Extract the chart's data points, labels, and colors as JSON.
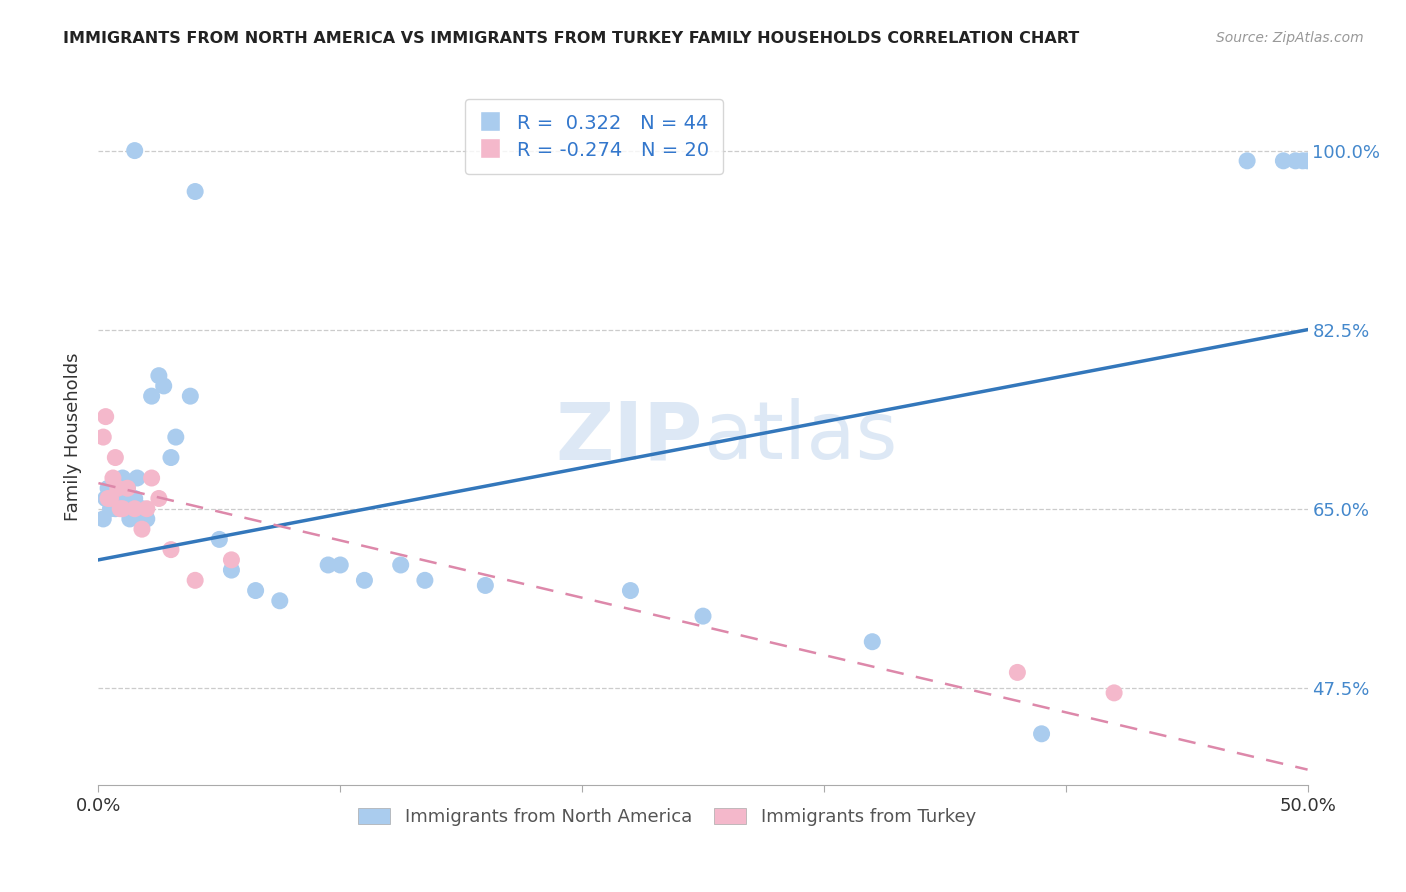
{
  "title": "IMMIGRANTS FROM NORTH AMERICA VS IMMIGRANTS FROM TURKEY FAMILY HOUSEHOLDS CORRELATION CHART",
  "source": "Source: ZipAtlas.com",
  "ylabel": "Family Households",
  "ytick_labels": [
    "100.0%",
    "82.5%",
    "65.0%",
    "47.5%"
  ],
  "ytick_values": [
    1.0,
    0.825,
    0.65,
    0.475
  ],
  "xmin": 0.0,
  "xmax": 0.5,
  "ymin": 0.38,
  "ymax": 1.06,
  "legend_blue_r": "R =  0.322",
  "legend_blue_n": "N = 44",
  "legend_pink_r": "R = -0.274",
  "legend_pink_n": "N = 20",
  "legend_label_blue": "Immigrants from North America",
  "legend_label_pink": "Immigrants from Turkey",
  "blue_color": "#aaccee",
  "pink_color": "#f4b8cb",
  "blue_line_color": "#3377bb",
  "pink_line_color": "#dd88aa",
  "watermark_zip": "ZIP",
  "watermark_atlas": "atlas",
  "blue_scatter_x": [
    0.015,
    0.04,
    0.002,
    0.003,
    0.004,
    0.005,
    0.006,
    0.007,
    0.008,
    0.009,
    0.01,
    0.011,
    0.012,
    0.013,
    0.015,
    0.016,
    0.018,
    0.019,
    0.02,
    0.022,
    0.025,
    0.027,
    0.03,
    0.032,
    0.038,
    0.05,
    0.055,
    0.065,
    0.075,
    0.095,
    0.1,
    0.11,
    0.125,
    0.135,
    0.16,
    0.22,
    0.25,
    0.32,
    0.39,
    0.475,
    0.49,
    0.495,
    0.498,
    0.5
  ],
  "blue_scatter_y": [
    1.0,
    0.96,
    0.64,
    0.66,
    0.67,
    0.65,
    0.66,
    0.65,
    0.67,
    0.665,
    0.68,
    0.66,
    0.67,
    0.64,
    0.66,
    0.68,
    0.65,
    0.64,
    0.64,
    0.76,
    0.78,
    0.77,
    0.7,
    0.72,
    0.76,
    0.62,
    0.59,
    0.57,
    0.56,
    0.595,
    0.595,
    0.58,
    0.595,
    0.58,
    0.575,
    0.57,
    0.545,
    0.52,
    0.43,
    0.99,
    0.99,
    0.99,
    0.99,
    0.99
  ],
  "pink_scatter_x": [
    0.002,
    0.003,
    0.004,
    0.005,
    0.006,
    0.007,
    0.008,
    0.009,
    0.01,
    0.012,
    0.015,
    0.018,
    0.02,
    0.022,
    0.025,
    0.03,
    0.04,
    0.055,
    0.38,
    0.42
  ],
  "pink_scatter_y": [
    0.72,
    0.74,
    0.66,
    0.66,
    0.68,
    0.7,
    0.67,
    0.65,
    0.65,
    0.67,
    0.65,
    0.63,
    0.65,
    0.68,
    0.66,
    0.61,
    0.58,
    0.6,
    0.49,
    0.47
  ],
  "blue_line_x0": 0.0,
  "blue_line_y0": 0.6,
  "blue_line_x1": 0.5,
  "blue_line_y1": 0.825,
  "pink_line_x0": 0.0,
  "pink_line_y0": 0.675,
  "pink_line_x1": 0.5,
  "pink_line_y1": 0.395
}
